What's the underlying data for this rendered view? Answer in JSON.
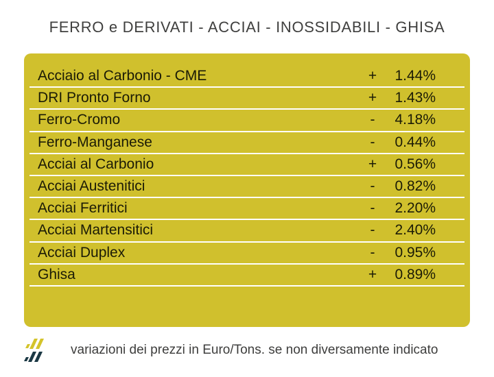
{
  "page": {
    "title": "FERRO e DERIVATI - ACCIAI - INOSSIDABILI - GHISA"
  },
  "chart_data": {
    "type": "table",
    "title": "FERRO e DERIVATI - ACCIAI - INOSSIDABILI - GHISA",
    "columns": [
      "material",
      "sign",
      "variation_pct"
    ],
    "rows": [
      [
        "Acciaio al Carbonio - CME",
        "+",
        "1.44%"
      ],
      [
        "DRI Pronto Forno",
        "+",
        "1.43%"
      ],
      [
        "Ferro-Cromo",
        "-",
        "4.18%"
      ],
      [
        "Ferro-Manganese",
        "-",
        "0.44%"
      ],
      [
        "Acciai al Carbonio",
        "+",
        "0.56%"
      ],
      [
        "Acciai Austenitici",
        "-",
        "0.82%"
      ],
      [
        "Acciai Ferritici",
        "-",
        "2.20%"
      ],
      [
        "Acciai Martensitici",
        "-",
        "2.40%"
      ],
      [
        "Acciai Duplex",
        "-",
        "0.95%"
      ],
      [
        "Ghisa",
        "+",
        "0.89%"
      ]
    ],
    "values_numeric": [
      1.44,
      1.43,
      -4.18,
      -0.44,
      0.56,
      -0.82,
      -2.2,
      -2.4,
      -0.95,
      0.89
    ],
    "note": "variazioni dei prezzi in Euro/Tons. se non diversamente indicato",
    "legend_position": "none",
    "grid": "row-separators-white"
  },
  "footer": {
    "note": "variazioni dei prezzi in Euro/Tons. se non diversamente indicato",
    "logo_icon": "brand-slashes-logo"
  },
  "colors": {
    "table_background": "#d0c02d",
    "row_text": "#1b1b06",
    "separator": "#ffffff",
    "title_text": "#3f3f3e",
    "note_text": "#3d3d3c",
    "logo_yellow": "#d4c42b",
    "logo_navy": "#1b3844",
    "page_background": "#ffffff"
  }
}
